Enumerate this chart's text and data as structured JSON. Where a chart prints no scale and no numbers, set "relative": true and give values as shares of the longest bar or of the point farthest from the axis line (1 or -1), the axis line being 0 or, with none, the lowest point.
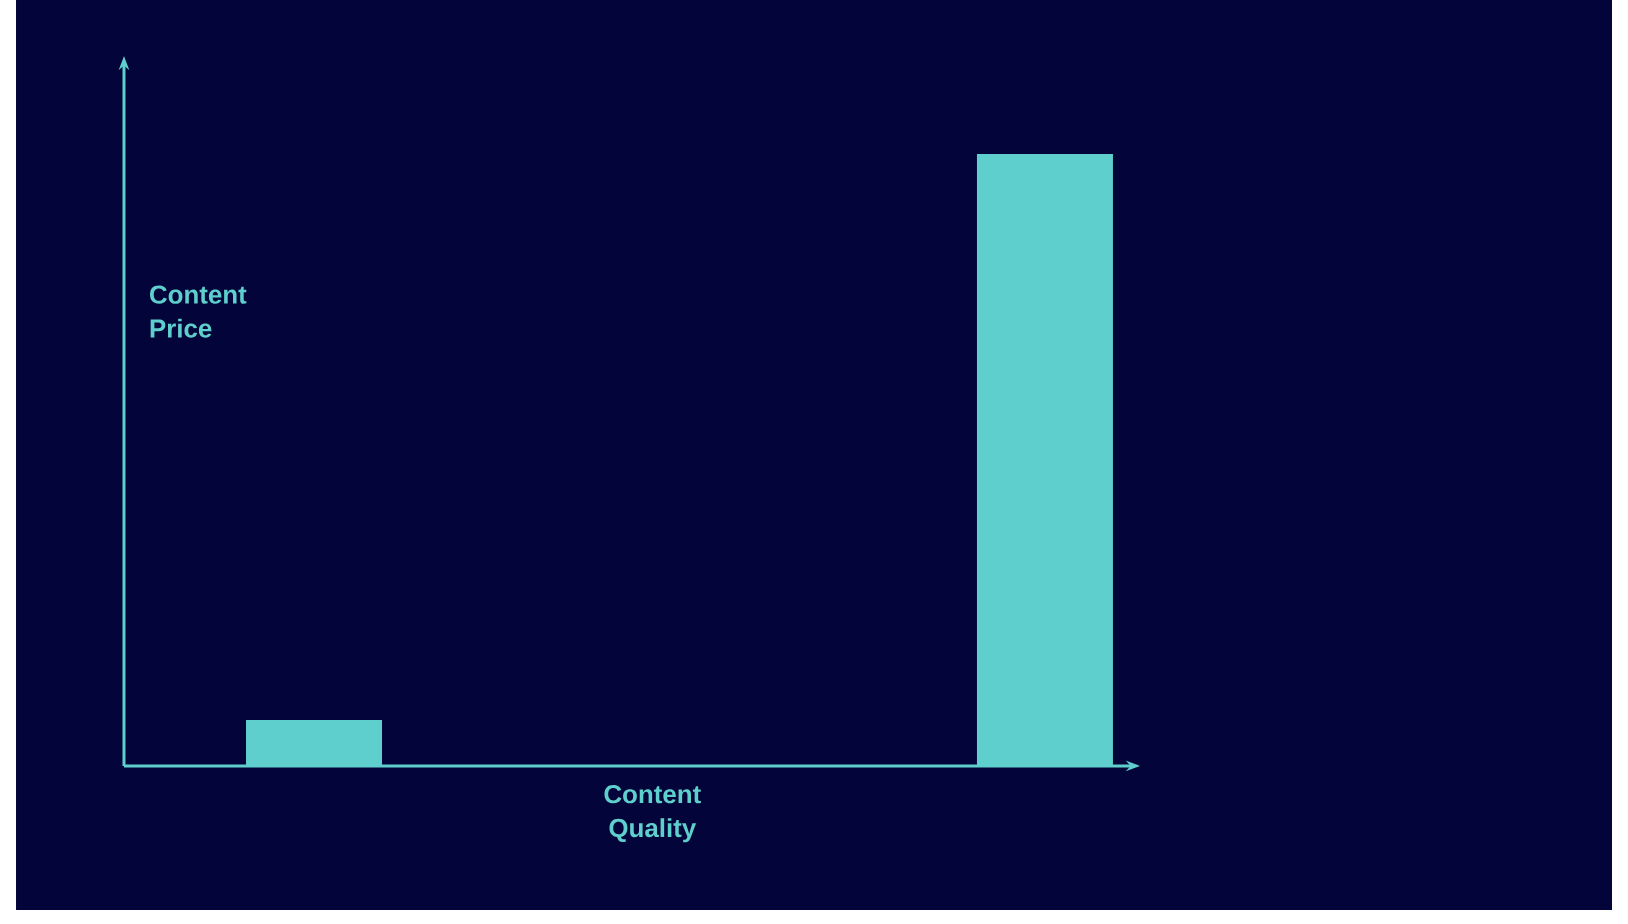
{
  "chart_data": {
    "type": "bar",
    "relative": true,
    "xlabel": "Content Quality",
    "ylabel": "Content Price",
    "categories": [
      null,
      null
    ],
    "values": [
      0.075,
      1
    ],
    "color": "#5ecfcc"
  }
}
